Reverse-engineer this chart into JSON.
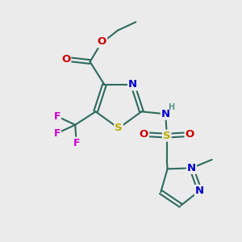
{
  "bg_color": "#ebebeb",
  "bond_color": "#2d6b5e",
  "bond_width": 1.5,
  "dbo": 0.08,
  "atom_colors": {
    "C": "#2d6b5e",
    "N": "#0000cc",
    "S": "#bbaa00",
    "O": "#cc0000",
    "F": "#cc00cc",
    "H": "#5a9a8a"
  },
  "font_size": 9.5,
  "fig_width": 3.0,
  "fig_height": 3.0,
  "xlim": [
    0,
    10
  ],
  "ylim": [
    0,
    10
  ]
}
